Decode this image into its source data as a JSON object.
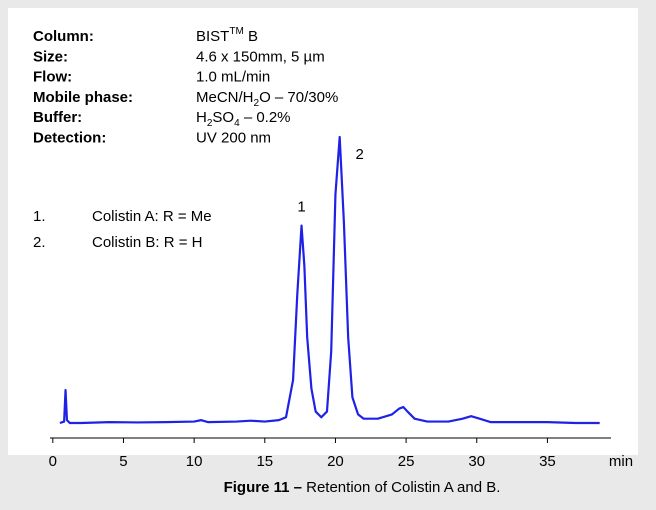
{
  "chart_data": {
    "type": "line",
    "conditions": [
      {
        "label": "Column:",
        "parts": [
          {
            "text": "BIST",
            "style": "normal"
          },
          {
            "text": "TM",
            "style": "sup"
          },
          {
            "text": " B",
            "style": "normal"
          }
        ]
      },
      {
        "label": "Size:",
        "parts": [
          {
            "text": "4.6 x 150mm, 5 µm",
            "style": "normal"
          }
        ]
      },
      {
        "label": "Flow:",
        "parts": [
          {
            "text": "1.0 mL/min",
            "style": "normal"
          }
        ]
      },
      {
        "label": "Mobile phase:",
        "parts": [
          {
            "text": "MeCN/H",
            "style": "normal"
          },
          {
            "text": "2",
            "style": "sub"
          },
          {
            "text": "O –  70/30%",
            "style": "normal"
          }
        ]
      },
      {
        "label": "Buffer:",
        "parts": [
          {
            "text": "H",
            "style": "normal"
          },
          {
            "text": "2",
            "style": "sub"
          },
          {
            "text": "SO",
            "style": "normal"
          },
          {
            "text": "4",
            "style": "sub"
          },
          {
            "text": " – 0.2%",
            "style": "normal"
          }
        ]
      },
      {
        "label": "Detection:",
        "parts": [
          {
            "text": "UV 200 nm",
            "style": "normal"
          }
        ]
      }
    ],
    "compounds": [
      {
        "number": "1.",
        "name": "Colistin A: R = Me"
      },
      {
        "number": "2.",
        "name": "Colistin B: R = H"
      }
    ],
    "peak_labels": [
      "1",
      "2"
    ],
    "caption": [
      {
        "text": "Figure 11 –",
        "style": "bold"
      },
      {
        "text": " Retention of Colistin A and B.",
        "style": "normal"
      }
    ],
    "x_label": "min",
    "xlim": [
      -0.2,
      39.5
    ],
    "xticks": [
      0,
      5,
      10,
      15,
      20,
      25,
      30,
      35
    ],
    "ylim": [
      -5,
      105
    ],
    "series": [
      {
        "color": "#1f22e6",
        "x": [
          0.5,
          0.8,
          0.9,
          1.0,
          1.2,
          2,
          4,
          6,
          8,
          10,
          10.5,
          11,
          13,
          14,
          15,
          16,
          16.5,
          17,
          17.3,
          17.6,
          17.8,
          18.0,
          18.3,
          18.6,
          19.0,
          19.4,
          19.7,
          20.0,
          20.3,
          20.6,
          20.9,
          21.2,
          21.6,
          22,
          23,
          24,
          24.5,
          24.8,
          25.1,
          25.6,
          26.5,
          28,
          29,
          29.6,
          30.2,
          31,
          33,
          35,
          37,
          38.7
        ],
        "values": [
          0,
          0.5,
          11.5,
          1,
          0,
          0,
          0.3,
          0.2,
          0.3,
          0.5,
          1,
          0.3,
          0.5,
          0.8,
          0.5,
          1,
          2,
          15,
          45,
          69,
          55,
          30,
          12,
          4,
          2,
          4,
          25,
          80,
          100,
          70,
          30,
          9,
          3,
          1.5,
          1.5,
          3,
          5,
          5.6,
          4,
          1.5,
          0.5,
          0.5,
          1.5,
          2.4,
          1.5,
          0.3,
          0.3,
          0.3,
          0,
          0
        ]
      }
    ]
  }
}
